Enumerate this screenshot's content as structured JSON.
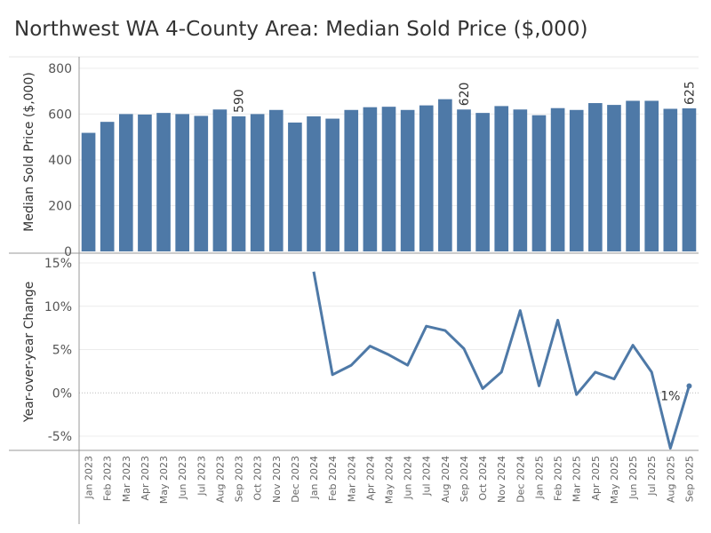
{
  "title": "Northwest WA 4-County Area: Median Sold Price ($,000)",
  "colors": {
    "bar": "#4e79a7",
    "line": "#4e79a7"
  },
  "chart_data": [
    {
      "type": "bar",
      "ylabel": "Median Sold Price ($,000)",
      "ylim": [
        0,
        850
      ],
      "yticks": [
        0,
        200,
        400,
        600,
        800
      ],
      "categories": [
        "Jan 2023",
        "Feb 2023",
        "Mar 2023",
        "Apr 2023",
        "May 2023",
        "Jun 2023",
        "Jul 2023",
        "Aug 2023",
        "Sep 2023",
        "Oct 2023",
        "Nov 2023",
        "Dec 2023",
        "Jan 2024",
        "Feb 2024",
        "Mar 2024",
        "Apr 2024",
        "May 2024",
        "Jun 2024",
        "Jul 2024",
        "Aug 2024",
        "Sep 2024",
        "Oct 2024",
        "Nov 2024",
        "Dec 2024",
        "Jan 2025",
        "Feb 2025",
        "Mar 2025",
        "Apr 2025",
        "May 2025",
        "Jun 2025",
        "Jul 2025",
        "Aug 2025",
        "Sep 2025"
      ],
      "values": [
        518,
        566,
        600,
        598,
        605,
        600,
        592,
        620,
        590,
        600,
        618,
        563,
        590,
        580,
        618,
        630,
        632,
        618,
        638,
        665,
        620,
        605,
        635,
        620,
        595,
        626,
        618,
        648,
        640,
        658,
        658,
        623,
        625
      ],
      "data_labels": [
        {
          "category": "Sep 2023",
          "text": "590"
        },
        {
          "category": "Sep 2024",
          "text": "620"
        },
        {
          "category": "Sep 2025",
          "text": "625"
        }
      ]
    },
    {
      "type": "line",
      "ylabel": "Year-over-year Change",
      "ylim": [
        -7,
        16
      ],
      "yticks": [
        15,
        10,
        5,
        0,
        -5
      ],
      "ytick_labels": [
        "15%",
        "10%",
        "5%",
        "0%",
        "-5%"
      ],
      "categories": [
        "Jan 2023",
        "Feb 2023",
        "Mar 2023",
        "Apr 2023",
        "May 2023",
        "Jun 2023",
        "Jul 2023",
        "Aug 2023",
        "Sep 2023",
        "Oct 2023",
        "Nov 2023",
        "Dec 2023",
        "Jan 2024",
        "Feb 2024",
        "Mar 2024",
        "Apr 2024",
        "May 2024",
        "Jun 2024",
        "Jul 2024",
        "Aug 2024",
        "Sep 2024",
        "Oct 2024",
        "Nov 2024",
        "Dec 2024",
        "Jan 2025",
        "Feb 2025",
        "Mar 2025",
        "Apr 2025",
        "May 2025",
        "Jun 2025",
        "Jul 2025",
        "Aug 2025",
        "Sep 2025"
      ],
      "values": [
        null,
        null,
        null,
        null,
        null,
        null,
        null,
        null,
        null,
        null,
        null,
        null,
        14,
        2.1,
        3.2,
        5.4,
        4.4,
        3.2,
        7.7,
        7.2,
        5.1,
        0.5,
        2.4,
        9.5,
        0.8,
        8.4,
        -0.2,
        2.4,
        1.6,
        5.5,
        2.4,
        -6.4,
        0.8
      ],
      "end_label": "1%"
    }
  ]
}
